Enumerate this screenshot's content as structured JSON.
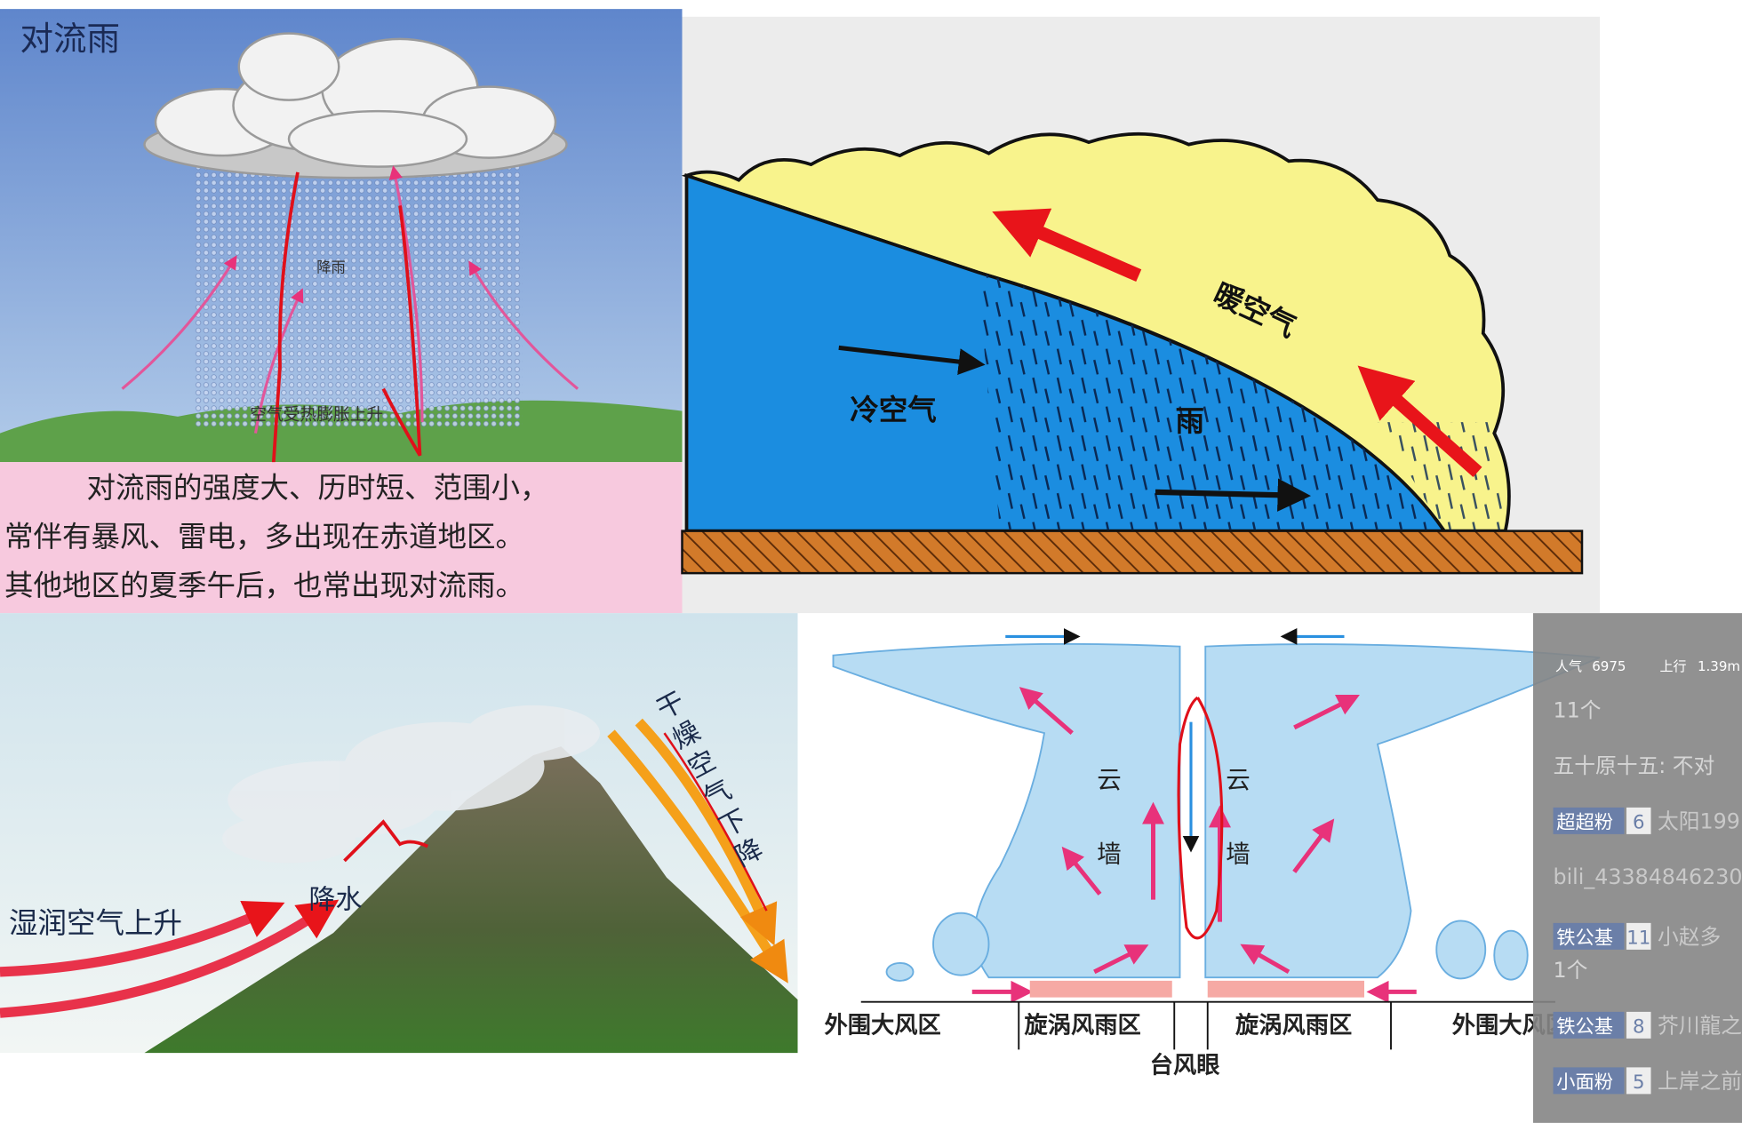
{
  "convection_rain": {
    "title": "对流雨",
    "rain_label": "降雨",
    "air_label": "空气受热膨胀上升",
    "description": [
      "对流雨的强度大、历时短、范围小，",
      "常伴有暴风、雷电，多出现在赤道地区。",
      "其他地区的夏季午后，也常出现对流雨。"
    ]
  },
  "frontal_rain": {
    "cold_air": "冷空气",
    "rain": "雨",
    "warm_air": "暖空气"
  },
  "orographic_rain": {
    "moist_air": "湿润空气上升",
    "precipitation": "降水",
    "dry_air": "干燥空气下降"
  },
  "typhoon": {
    "cloud_wall": [
      "云墙",
      "云墙"
    ],
    "zones": [
      "外围大风区",
      "旋涡风雨区",
      "旋涡风雨区",
      "外围大风区"
    ],
    "eye": "台风眼"
  },
  "stream_overlay": {
    "popularity_label": "人气",
    "popularity": 6975,
    "upload_label": "上行",
    "upload": "1.39m",
    "messages": [
      {
        "text": "11个"
      },
      {
        "text": "五十原十五: 不对"
      },
      {
        "badge": "超超粉",
        "level": 6,
        "user": "太阳199"
      },
      {
        "user": "bili_43384846230"
      },
      {
        "badge": "铁公基",
        "level": 11,
        "user": "小赵多"
      },
      {
        "text": "1个"
      },
      {
        "badge": "铁公基",
        "level": 8,
        "user": "芥川龍之"
      },
      {
        "badge": "小面粉",
        "level": 5,
        "user": "上岸之前"
      }
    ]
  }
}
